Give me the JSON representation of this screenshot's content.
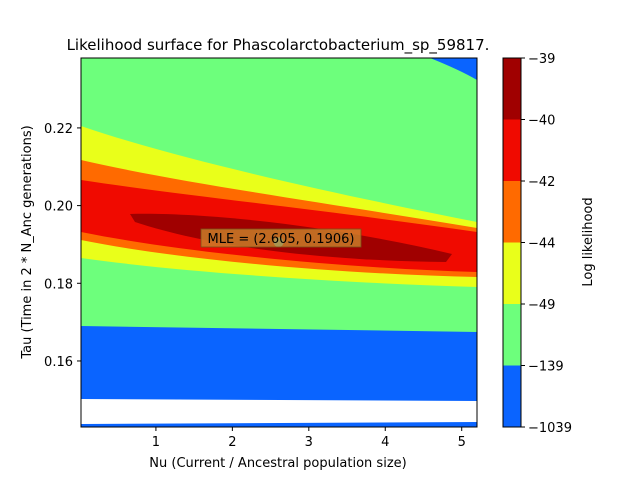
{
  "chart_data": {
    "type": "contour",
    "title": "Likelihood surface for Phascolarctobacterium_sp_59817.",
    "xlabel": "Nu (Current / Ancestral population size)",
    "ylabel": "Tau (Time in 2 * N_Anc generations)",
    "xlim": [
      0.02,
      5.2
    ],
    "ylim": [
      0.143,
      0.238
    ],
    "xticks": [
      1,
      2,
      3,
      4,
      5
    ],
    "yticks": [
      0.16,
      0.18,
      0.2,
      0.22
    ],
    "grid": false,
    "colorbar": {
      "label": "Log likelihood",
      "levels": [
        -1039,
        -139,
        -49,
        -44,
        -42,
        -40,
        -39
      ],
      "colors": [
        "#0a64ff",
        "#6dff7c",
        "#e9ff1a",
        "#ff6a00",
        "#f00a00",
        "#a00000"
      ]
    },
    "mle": {
      "nu": 2.605,
      "tau": 0.1906,
      "label": "MLE = (2.605, 0.1906)"
    }
  }
}
